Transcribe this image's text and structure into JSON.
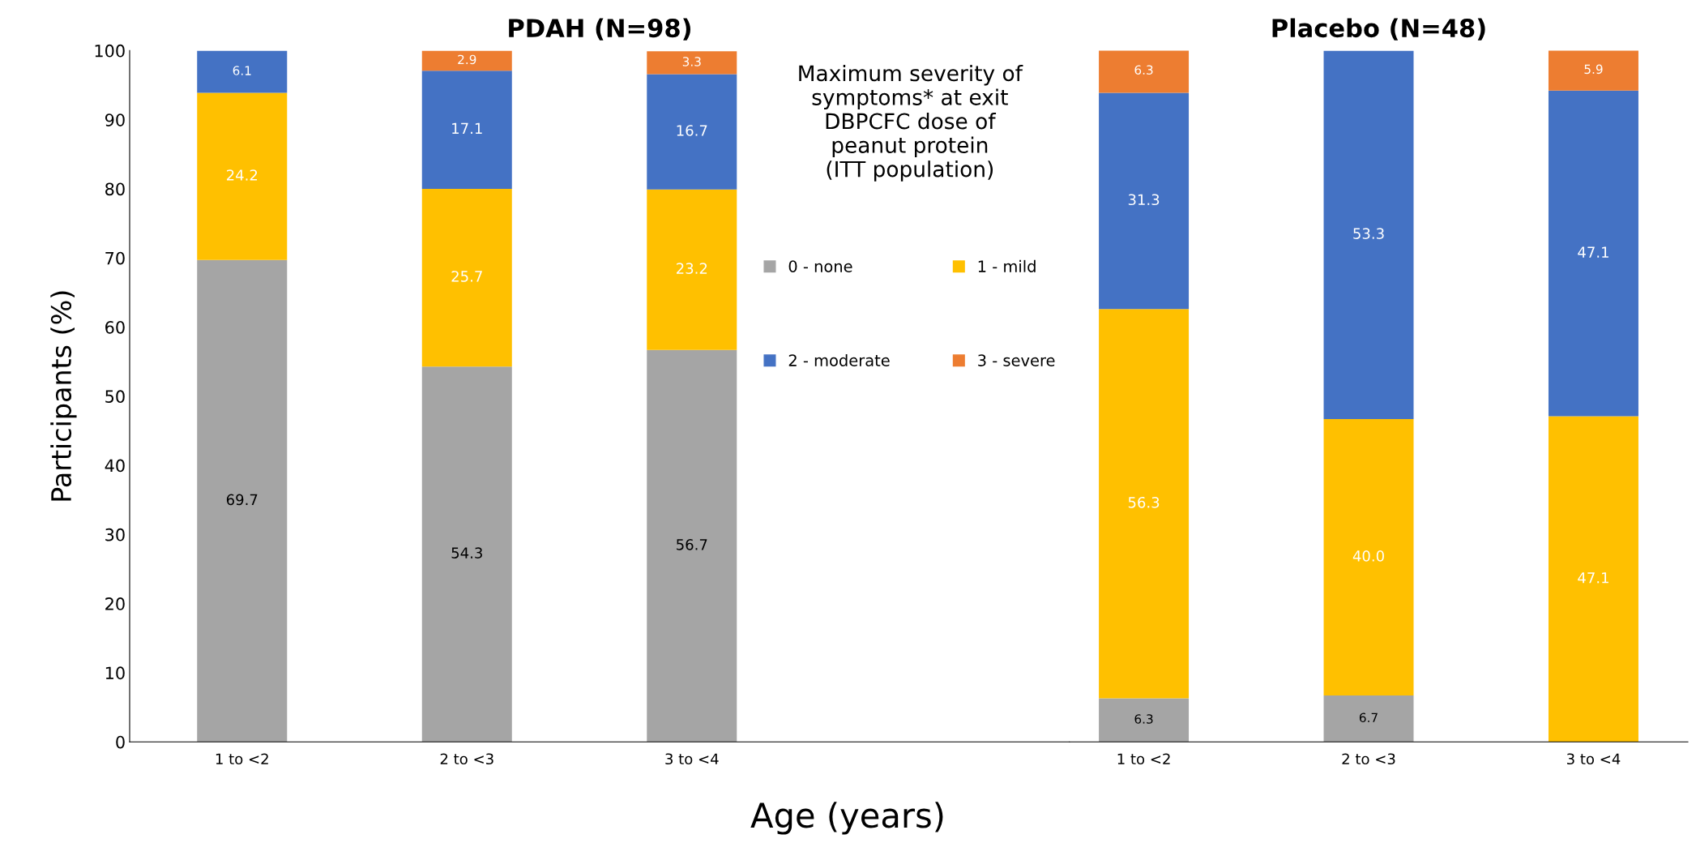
{
  "chart_data": [
    {
      "type": "bar",
      "title": "PDAH (N=98)",
      "xlabel": "Age (years)",
      "ylabel": "Participants (%)",
      "stacked": true,
      "categories": [
        "1 to <2",
        "2 to <3",
        "3 to <4"
      ],
      "ylim": [
        0,
        100
      ],
      "yticks": [
        0,
        10,
        20,
        30,
        40,
        50,
        60,
        70,
        80,
        90,
        100
      ],
      "legend_title": "Maximum severity of\nsymptoms* at exit\nDBPCFC dose of\npeanut protein\n(ITT population)",
      "grid": false,
      "legend": "top right",
      "series": [
        {
          "name": "0 - none",
          "color": "#a5a5a5",
          "values": [
            69.7,
            54.3,
            56.7
          ],
          "value_labels": [
            "69.7",
            "54.3",
            "56.7"
          ]
        },
        {
          "name": "1 - mild",
          "color": "#ffc000",
          "values": [
            24.2,
            25.7,
            23.2
          ],
          "value_labels": [
            "24.2",
            "25.7",
            "23.2"
          ]
        },
        {
          "name": "2 - moderate",
          "color": "#4472c4",
          "values": [
            6.1,
            17.1,
            16.7
          ],
          "value_labels": [
            "6.1",
            "17.1",
            "16.7"
          ]
        },
        {
          "name": "3 - severe",
          "color": "#ed7d31",
          "values": [
            0,
            2.9,
            3.3
          ],
          "value_labels": [
            null,
            "2.9",
            "3.3"
          ]
        }
      ]
    },
    {
      "type": "bar",
      "title": "Placebo (N=48)",
      "stacked": true,
      "categories": [
        "1 to <2",
        "2 to <3",
        "3 to <4"
      ],
      "ylim": [
        0,
        100
      ],
      "tick_labels": "x",
      "grid": false,
      "series": [
        {
          "color": "#a5a5a5",
          "values": [
            6.3,
            6.7,
            0
          ],
          "value_labels": [
            "6.3",
            "6.7",
            null
          ]
        },
        {
          "color": "#ffc000",
          "values": [
            56.3,
            40.0,
            47.1
          ],
          "value_labels": [
            "56.3",
            "40.0",
            "47.1"
          ]
        },
        {
          "color": "#4472c4",
          "values": [
            31.3,
            53.3,
            47.1
          ],
          "value_labels": [
            "31.3",
            "53.3",
            "47.1"
          ]
        },
        {
          "color": "#ed7d31",
          "values": [
            6.3,
            0,
            5.9
          ],
          "value_labels": [
            "6.3",
            null,
            "5.9"
          ]
        }
      ]
    }
  ]
}
